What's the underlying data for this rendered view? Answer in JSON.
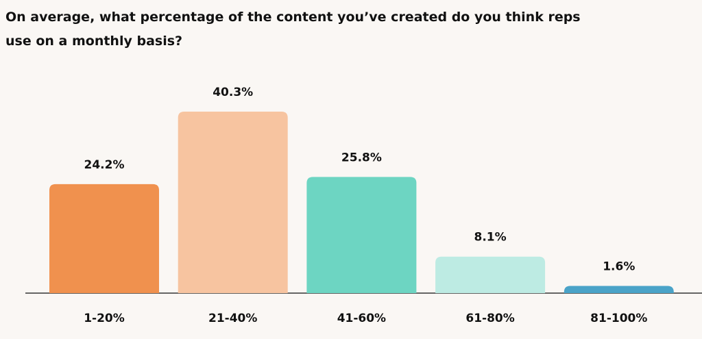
{
  "chart_data": {
    "type": "bar",
    "title": "On average, what percentage of the content you’ve created do you think reps use on a monthly basis?",
    "categories": [
      "1-20%",
      "21-40%",
      "41-60%",
      "61-80%",
      "81-100%"
    ],
    "values": [
      24.2,
      40.3,
      25.8,
      8.1,
      1.6
    ],
    "value_labels": [
      "24.2%",
      "40.3%",
      "25.8%",
      "8.1%",
      "1.6%"
    ],
    "colors": [
      "#f0914e",
      "#f7c4a0",
      "#6dd5c2",
      "#bdebe3",
      "#4aa3c8"
    ]
  }
}
